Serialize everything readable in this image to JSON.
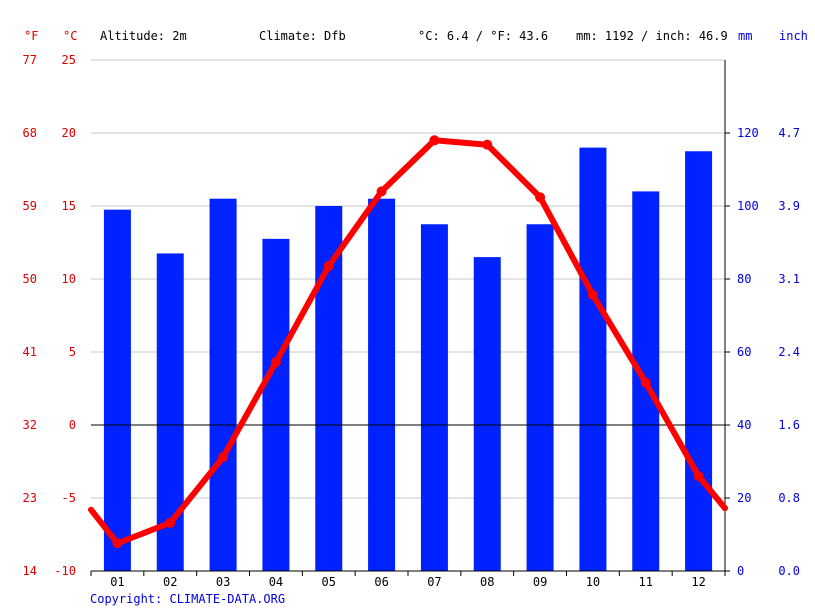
{
  "header": {
    "unit_f": "°F",
    "unit_c": "°C",
    "altitude": "Altitude: 2m",
    "climate": "Climate: Dfb",
    "temp_avg": "°C: 6.4 / °F: 43.6",
    "precip_total": "mm: 1192 / inch: 46.9",
    "unit_mm": "mm",
    "unit_inch": "inch"
  },
  "copyright": "Copyright: CLIMATE-DATA.ORG",
  "colors": {
    "temperature": "#ff0000",
    "precipitation": "#0022ff",
    "temp_axis_text": "#e00000",
    "precip_axis_text": "#0000e0",
    "grid": "#c8c8c8"
  },
  "chart_data": {
    "type": "bar+line",
    "categories": [
      "01",
      "02",
      "03",
      "04",
      "05",
      "06",
      "07",
      "08",
      "09",
      "10",
      "11",
      "12"
    ],
    "series": [
      {
        "type": "bar",
        "axis": "right",
        "unit": "mm",
        "values": [
          99,
          87,
          102,
          91,
          100,
          102,
          95,
          86,
          95,
          116,
          104,
          115
        ]
      },
      {
        "type": "line",
        "axis": "left",
        "unit": "°C",
        "values": [
          -8.1,
          -6.7,
          -2.2,
          4.3,
          10.9,
          16.0,
          19.5,
          19.2,
          15.6,
          8.9,
          2.9,
          -3.5
        ]
      }
    ],
    "line_ends": [
      -5.8,
      -5.7
    ],
    "y_left": {
      "unit": "°C",
      "ylim": [
        -10,
        25
      ],
      "ticks": [
        "25",
        "20",
        "15",
        "10",
        "5",
        "0",
        "-5",
        "-10"
      ]
    },
    "y_left_f": {
      "unit": "°F",
      "ticks": [
        "77",
        "68",
        "59",
        "50",
        "41",
        "32",
        "23",
        "14"
      ]
    },
    "y_right": {
      "unit": "mm",
      "ylim": [
        0,
        140
      ],
      "ticks": [
        "120",
        "100",
        "80",
        "60",
        "40",
        "20",
        "0"
      ]
    },
    "y_right_in": {
      "unit": "inch",
      "ticks": [
        "4.7",
        "3.9",
        "3.1",
        "2.4",
        "1.6",
        "0.8",
        "0.0"
      ]
    },
    "grid": true
  }
}
